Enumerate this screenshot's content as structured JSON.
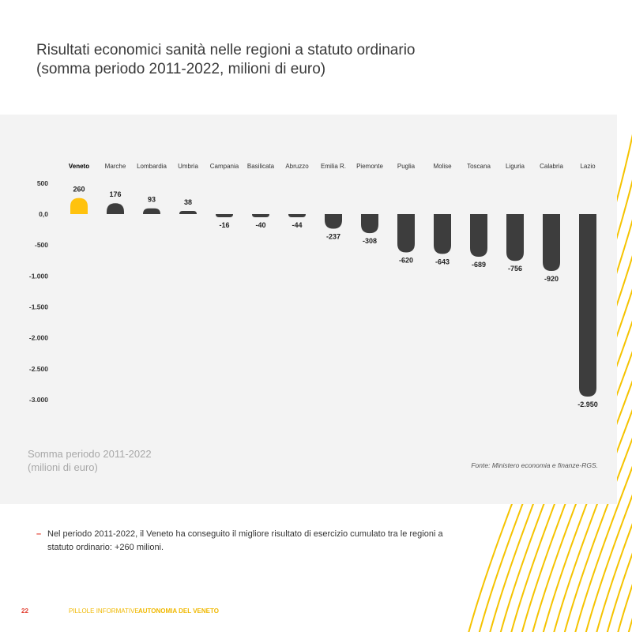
{
  "title": {
    "line1": "Risultati economici sanità nelle regioni a statuto ordinario",
    "line2": "(somma periodo 2011-2022, milioni di euro)"
  },
  "colors": {
    "highlight": "#ffc20e",
    "bar": "#3d3d3d",
    "accent_red": "#e23d2f",
    "deco_yellow": "#f5c300"
  },
  "chart_data": {
    "type": "bar",
    "title": "Risultati economici sanità nelle regioni a statuto ordinario",
    "categories": [
      "Veneto",
      "Marche",
      "Lombardia",
      "Umbria",
      "Campania",
      "Basilicata",
      "Abruzzo",
      "Emilia R.",
      "Piemonte",
      "Puglia",
      "Molise",
      "Toscana",
      "Liguria",
      "Calabria",
      "Lazio"
    ],
    "values": [
      260,
      176,
      93,
      38,
      -16,
      -40,
      -44,
      -237,
      -308,
      -620,
      -643,
      -689,
      -756,
      -920,
      -2950
    ],
    "value_labels": [
      "260",
      "176",
      "93",
      "38",
      "-16",
      "-40",
      "-44",
      "-237",
      "-308",
      "-620",
      "-643",
      "-689",
      "-756",
      "-920",
      "-2.950"
    ],
    "highlight_index": 0,
    "ylim": [
      -3000,
      500
    ],
    "yticks": [
      500,
      0,
      -500,
      -1000,
      -1500,
      -2000,
      -2500,
      -3000
    ],
    "ytick_labels": [
      "500",
      "0,0",
      "-500",
      "-1.000",
      "-1.500",
      "-2.000",
      "-2.500",
      "-3.000"
    ],
    "xlabel": "",
    "ylabel": ""
  },
  "caption": {
    "line1": "Somma periodo 2011-2022",
    "line2": "(milioni di euro)"
  },
  "source": "Fonte: Ministero economia e finanze-RGS.",
  "bullet": {
    "marker": "–",
    "text": "Nel periodo 2011-2022, il Veneto ha conseguito il migliore risultato di esercizio cumulato tra le regioni a statuto ordinario: +260 milioni."
  },
  "footer": {
    "page": "22",
    "series": "PILLOLE INFORMATIVE",
    "brand": "AUTONOMIA DEL VENETO"
  }
}
